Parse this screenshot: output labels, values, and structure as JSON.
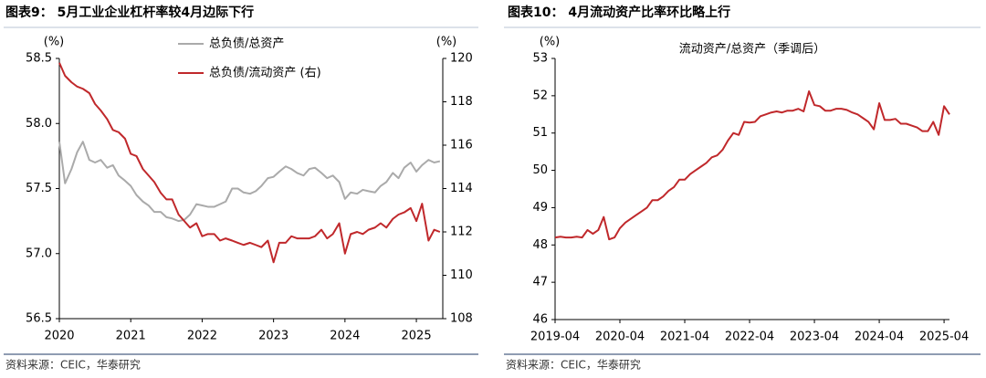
{
  "chart_data": [
    {
      "type": "line",
      "title": "图表9：  5月工业企业杠杆率较4月边际下行",
      "y_unit": "(%)",
      "y2_unit": "(%)",
      "source": "资料来源：CEIC，华泰研究",
      "legend": "top",
      "x": [
        2020,
        2020.08,
        2020.17,
        2020.25,
        2020.33,
        2020.42,
        2020.5,
        2020.58,
        2020.67,
        2020.75,
        2020.83,
        2020.92,
        2021,
        2021.08,
        2021.17,
        2021.25,
        2021.33,
        2021.42,
        2021.5,
        2021.58,
        2021.67,
        2021.75,
        2021.83,
        2021.92,
        2022,
        2022.08,
        2022.17,
        2022.25,
        2022.33,
        2022.42,
        2022.5,
        2022.58,
        2022.67,
        2022.75,
        2022.83,
        2022.92,
        2023,
        2023.08,
        2023.17,
        2023.25,
        2023.33,
        2023.42,
        2023.5,
        2023.58,
        2023.67,
        2023.75,
        2023.83,
        2023.92,
        2024,
        2024.08,
        2024.17,
        2024.25,
        2024.33,
        2024.42,
        2024.5,
        2024.58,
        2024.67,
        2024.75,
        2024.83,
        2024.92,
        2025,
        2025.08,
        2025.17,
        2025.25,
        2025.33
      ],
      "xlim": [
        2020,
        2025.37
      ],
      "xticks": [
        2020,
        2021,
        2022,
        2023,
        2024,
        2025
      ],
      "ylim": [
        56.5,
        58.5
      ],
      "yticks": [
        56.5,
        {
          "value": 57,
          "label": "57.0"
        },
        57.5,
        {
          "value": 58,
          "label": "58.0"
        },
        58.5
      ],
      "y2lim": [
        108,
        120
      ],
      "y2ticks": [
        108,
        110,
        112,
        114,
        116,
        118,
        120
      ],
      "series": [
        {
          "name": "总负债/总资产",
          "color": "#aaaaaa",
          "values": [
            57.86,
            57.54,
            57.65,
            57.78,
            57.86,
            57.72,
            57.7,
            57.72,
            57.66,
            57.68,
            57.6,
            57.56,
            57.52,
            57.45,
            57.4,
            57.37,
            57.32,
            57.32,
            57.28,
            57.27,
            57.25,
            57.26,
            57.3,
            57.38,
            57.37,
            57.36,
            57.36,
            57.38,
            57.4,
            57.5,
            57.5,
            57.47,
            57.46,
            57.48,
            57.52,
            57.58,
            57.59,
            57.63,
            57.67,
            57.65,
            57.62,
            57.6,
            57.65,
            57.66,
            57.62,
            57.58,
            57.6,
            57.55,
            57.42,
            57.47,
            57.46,
            57.49,
            57.48,
            57.47,
            57.52,
            57.55,
            57.62,
            57.58,
            57.66,
            57.7,
            57.63,
            57.68,
            57.72,
            57.7,
            57.71
          ]
        },
        {
          "name": "总负债/流动资产 (右)",
          "color": "#c0282b",
          "axis": "y2",
          "values": [
            119.8,
            119.2,
            118.9,
            118.7,
            118.6,
            118.4,
            117.9,
            117.6,
            117.2,
            116.7,
            116.6,
            116.3,
            115.6,
            115.5,
            114.9,
            114.6,
            114.3,
            113.8,
            113.5,
            113.5,
            112.8,
            112.5,
            112.2,
            112.4,
            111.8,
            111.9,
            111.9,
            111.6,
            111.7,
            111.6,
            111.5,
            111.4,
            111.5,
            111.4,
            111.3,
            111.6,
            110.6,
            111.5,
            111.5,
            111.8,
            111.7,
            111.7,
            111.7,
            111.8,
            112.1,
            111.7,
            111.9,
            112.4,
            111.0,
            111.9,
            112.0,
            111.9,
            112.1,
            112.2,
            112.4,
            112.2,
            112.6,
            112.8,
            112.9,
            113.1,
            112.5,
            113.3,
            111.6,
            112.1,
            112.0
          ]
        }
      ]
    },
    {
      "type": "line",
      "title": "图表10：  4月流动资产比率环比略上行",
      "y_unit": "(%)",
      "subtitle": "流动资产/总资产（季调后）",
      "source": "资料来源：CEIC，华泰研究",
      "categories": [
        "2019-04",
        null,
        null,
        null,
        null,
        null,
        null,
        null,
        null,
        null,
        null,
        null,
        "2020-04",
        null,
        null,
        null,
        null,
        null,
        null,
        null,
        null,
        null,
        null,
        null,
        "2021-04",
        null,
        null,
        null,
        null,
        null,
        null,
        null,
        null,
        null,
        null,
        null,
        "2022-04",
        null,
        null,
        null,
        null,
        null,
        null,
        null,
        null,
        null,
        null,
        null,
        "2023-04",
        null,
        null,
        null,
        null,
        null,
        null,
        null,
        null,
        null,
        null,
        null,
        "2024-04",
        null,
        null,
        null,
        null,
        null,
        null,
        null,
        null,
        null,
        null,
        null,
        "2025-04",
        null
      ],
      "ylim": [
        46,
        53
      ],
      "yticks": [
        46,
        47,
        48,
        49,
        50,
        51,
        52,
        53
      ],
      "series": [
        {
          "name": "流动资产/总资产",
          "color": "#c0282b",
          "values": [
            48.2,
            48.22,
            48.2,
            48.2,
            48.22,
            48.2,
            48.4,
            48.3,
            48.4,
            48.75,
            48.15,
            48.2,
            48.45,
            48.6,
            48.7,
            48.8,
            48.9,
            49.0,
            49.2,
            49.2,
            49.3,
            49.45,
            49.55,
            49.75,
            49.75,
            49.9,
            50.0,
            50.1,
            50.2,
            50.35,
            50.4,
            50.55,
            50.8,
            51.0,
            50.95,
            51.3,
            51.28,
            51.3,
            51.45,
            51.5,
            51.55,
            51.58,
            51.55,
            51.6,
            51.6,
            51.65,
            51.58,
            52.12,
            51.75,
            51.72,
            51.6,
            51.6,
            51.65,
            51.65,
            51.62,
            51.55,
            51.5,
            51.4,
            51.3,
            51.1,
            51.8,
            51.35,
            51.35,
            51.38,
            51.25,
            51.25,
            51.2,
            51.15,
            51.05,
            51.05,
            51.3,
            50.95,
            51.72,
            51.5
          ]
        }
      ]
    }
  ]
}
